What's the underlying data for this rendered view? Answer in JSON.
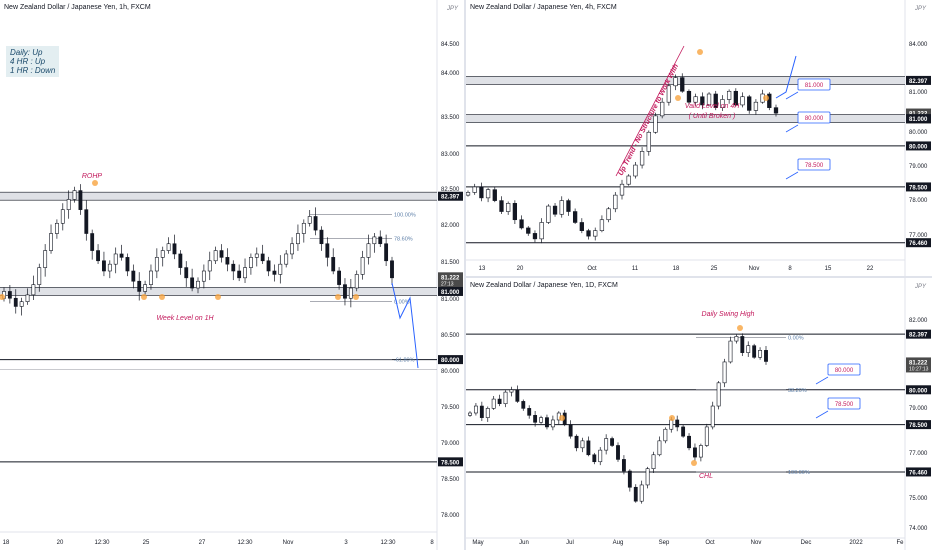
{
  "colors": {
    "up": "#131722",
    "down": "#131722",
    "zone": "#b2b5be",
    "accent_blue": "#2962ff",
    "swing_orange": "#f7a440",
    "label_red": "#c2185b",
    "price_label_bg": "#131722",
    "current_label_bg": "#4a4a4a"
  },
  "trend_box": {
    "daily": "Daily:  Up",
    "h4": "4 HR :  Up",
    "h1": "1 HR :  Down"
  },
  "chart_data": [
    {
      "type": "candlestick",
      "title": "New Zealand Dollar / Japanese Yen, 1h, FXCM",
      "currency_label": "JPY",
      "ylim": [
        77.5,
        85.1
      ],
      "y_ticks": [
        "84.500",
        "84.000",
        "83.500",
        "83.000",
        "82.500",
        "82.000",
        "81.500",
        "81.000",
        "80.500",
        "80.000",
        "79.500",
        "79.000",
        "78.500",
        "78.000"
      ],
      "x_ticks": [
        "18",
        "20",
        "12:30",
        "25",
        "27",
        "12:30",
        "Nov",
        "3",
        "12:30",
        "8"
      ],
      "price_labels": [
        {
          "value": "82.397",
          "y": 82.397
        },
        {
          "value": "81.222",
          "sub": "27:13",
          "y": 81.222,
          "current": true
        },
        {
          "value": "81.000",
          "y": 81.0
        },
        {
          "value": "80.000",
          "y": 80.0
        },
        {
          "value": "78.500",
          "y": 78.5
        }
      ],
      "zones": [
        82.397,
        81.0
      ],
      "levels": [
        80.0,
        78.5
      ],
      "fib": [
        {
          "label": "100.00%",
          "y": 82.13
        },
        {
          "label": "78.60%",
          "y": 81.78
        },
        {
          "label": "0.00%",
          "y": 80.85
        },
        {
          "label": "-61.80%",
          "y": 80.0
        }
      ],
      "annotations": [
        {
          "text": "ROHP"
        },
        {
          "text": "Week Level on 1H"
        }
      ],
      "close": [
        81.0,
        80.9,
        80.78,
        80.85,
        80.95,
        81.1,
        81.35,
        81.6,
        81.85,
        82.0,
        82.2,
        82.35,
        82.48,
        82.2,
        81.85,
        81.6,
        81.45,
        81.3,
        81.4,
        81.55,
        81.5,
        81.3,
        81.15,
        81.0,
        81.1,
        81.3,
        81.5,
        81.6,
        81.7,
        81.55,
        81.35,
        81.2,
        81.05,
        81.15,
        81.3,
        81.45,
        81.6,
        81.5,
        81.4,
        81.3,
        81.2,
        81.35,
        81.5,
        81.55,
        81.45,
        81.3,
        81.25,
        81.4,
        81.55,
        81.7,
        81.85,
        82.0,
        82.1,
        81.9,
        81.7,
        81.5,
        81.3,
        81.1,
        80.9,
        81.05,
        81.25,
        81.5,
        81.7,
        81.8,
        81.7,
        81.45,
        81.2
      ]
    },
    {
      "type": "candlestick",
      "title": "New Zealand Dollar / Japanese Yen, 4h, FXCM",
      "currency_label": "JPY",
      "ylim": [
        75.9,
        84.9
      ],
      "y_ticks": [
        "84.000",
        "82.000",
        "81.000",
        "80.000",
        "79.000",
        "78.000",
        "77.000"
      ],
      "x_ticks": [
        "13",
        "20",
        "Oct",
        "11",
        "18",
        "25",
        "Nov",
        "8",
        "15",
        "22"
      ],
      "price_labels": [
        {
          "value": "82.397",
          "y": 82.397
        },
        {
          "value": "81.222",
          "sub": "03:27:13",
          "y": 81.222,
          "current": true
        },
        {
          "value": "81.000",
          "y": 81.0
        },
        {
          "value": "80.000",
          "y": 80.0
        },
        {
          "value": "78.500",
          "y": 78.5
        },
        {
          "value": "76.460",
          "y": 76.46
        }
      ],
      "zones": [
        82.397,
        81.0
      ],
      "levels": [
        80.0,
        78.5,
        76.46
      ],
      "callouts": [
        "81.000",
        "80.000",
        "78.500"
      ],
      "annotations": [
        {
          "text": "Up Trend - No Structure to Work With"
        },
        {
          "text": "Valid Level on 4H"
        },
        {
          "text": "( Until Broken )"
        }
      ],
      "close": [
        78.3,
        78.5,
        78.1,
        78.4,
        78.0,
        77.6,
        77.9,
        77.3,
        77.0,
        76.8,
        76.6,
        77.2,
        77.8,
        77.5,
        78.0,
        77.6,
        77.2,
        76.9,
        76.7,
        76.9,
        77.3,
        77.7,
        78.2,
        78.6,
        78.9,
        79.3,
        79.8,
        80.5,
        81.1,
        81.6,
        82.2,
        82.5,
        82.0,
        81.6,
        81.8,
        81.5,
        81.9,
        81.4,
        81.7,
        82.0,
        81.5,
        81.8,
        81.3,
        81.6,
        81.9,
        81.4,
        81.2
      ]
    },
    {
      "type": "candlestick",
      "title": "New Zealand Dollar / Japanese Yen, 1D, FXCM",
      "currency_label": "JPY",
      "ylim": [
        73.7,
        84.3
      ],
      "y_ticks": [
        "82.000",
        "79.000",
        "77.000",
        "75.000",
        "74.000"
      ],
      "x_ticks": [
        "May",
        "Jun",
        "Jul",
        "Aug",
        "Sep",
        "Oct",
        "Nov",
        "Dec",
        "2022",
        "Fe"
      ],
      "price_labels": [
        {
          "value": "82.397",
          "y": 82.397
        },
        {
          "value": "81.222",
          "sub": "10:27:13",
          "y": 81.222,
          "current": true
        },
        {
          "value": "80.000",
          "y": 80.0
        },
        {
          "value": "78.500",
          "y": 78.5
        },
        {
          "value": "76.460",
          "y": 76.46
        }
      ],
      "levels": [
        82.397,
        80.0,
        78.5,
        76.46
      ],
      "fib": [
        {
          "label": "0.00%",
          "y": 82.25
        },
        {
          "label": "38.20%",
          "y": 80.0
        },
        {
          "label": "100.00%",
          "y": 76.46
        }
      ],
      "callouts": [
        "80.000",
        "78.500"
      ],
      "annotations": [
        {
          "text": "Daily Swing High"
        },
        {
          "text": "CHL"
        }
      ],
      "close": [
        79.0,
        79.3,
        78.8,
        79.2,
        79.6,
        79.4,
        79.9,
        80.0,
        79.5,
        79.2,
        78.9,
        78.6,
        78.8,
        78.4,
        78.7,
        79.0,
        78.5,
        78.0,
        77.5,
        77.8,
        77.2,
        76.9,
        77.4,
        77.9,
        77.6,
        77.0,
        76.5,
        75.8,
        75.2,
        75.9,
        76.6,
        77.2,
        77.8,
        78.3,
        78.7,
        78.4,
        78.0,
        77.5,
        77.1,
        77.6,
        78.4,
        79.3,
        80.3,
        81.2,
        82.1,
        82.3,
        81.6,
        81.9,
        81.4,
        81.7,
        81.22
      ]
    }
  ]
}
